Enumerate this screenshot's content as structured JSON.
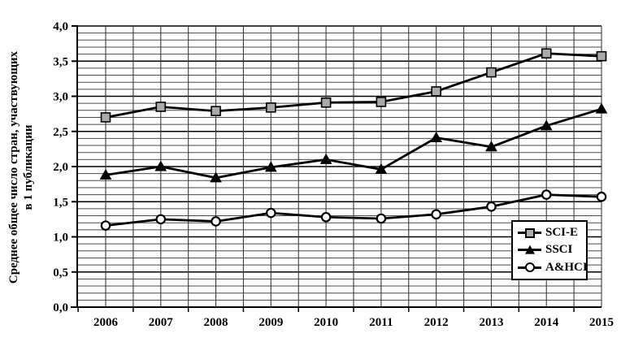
{
  "chart_data": {
    "type": "line",
    "title": "",
    "xlabel": "",
    "ylabel_lines": [
      "Среднее общее число стран, участвующих",
      "в 1 публикации"
    ],
    "x": [
      2006,
      2007,
      2008,
      2009,
      2010,
      2011,
      2012,
      2013,
      2014,
      2015
    ],
    "series": [
      {
        "name": "SCI-E",
        "marker": "square",
        "marker_fill": "#aaaaaa",
        "values": [
          2.7,
          2.85,
          2.79,
          2.84,
          2.91,
          2.92,
          3.07,
          3.34,
          3.61,
          3.57
        ]
      },
      {
        "name": "SSCI",
        "marker": "triangle",
        "marker_fill": "#000000",
        "values": [
          1.88,
          2.0,
          1.84,
          1.99,
          2.1,
          1.96,
          2.41,
          2.28,
          2.58,
          2.82
        ]
      },
      {
        "name": "A&HCI",
        "marker": "circle",
        "marker_fill": "#ffffff",
        "values": [
          1.16,
          1.25,
          1.22,
          1.34,
          1.28,
          1.26,
          1.32,
          1.43,
          1.6,
          1.57
        ]
      }
    ],
    "ylim": [
      0.0,
      4.0
    ],
    "y_major_step": 0.5,
    "y_minor_step": 0.1,
    "y_tick_labels": [
      "0,0",
      "0,5",
      "1,0",
      "1,5",
      "2,0",
      "2,5",
      "3,0",
      "3,5",
      "4,0"
    ],
    "grid": true,
    "legend_position": "inside-bottom-right",
    "colors": {
      "line": "#000000",
      "grid_minor": "#4a4a4a",
      "grid_vertical": "#3a3a3a",
      "grid_major": "#000000",
      "background": "#ffffff"
    }
  }
}
